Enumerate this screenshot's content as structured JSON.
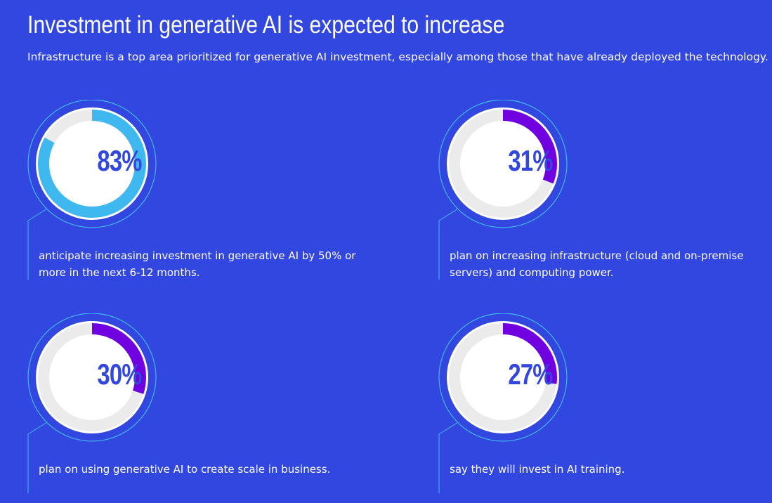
{
  "header": {
    "title": "Investment in generative AI is expected to increase",
    "subtitle": "Infrastructure is a top area prioritized for generative AI investment, especially among those that have already deployed the technology."
  },
  "colors": {
    "background": "#3246e0",
    "track": "#ebebeb",
    "light_blue": "#3fb8f0",
    "purple": "#7000e0",
    "ring": "#3fb8f0"
  },
  "stats": [
    {
      "value": 83,
      "label": "83%",
      "color": "#3fb8f0",
      "description": "anticipate increasing investment in generative AI by 50% or more in the next 6-12 months."
    },
    {
      "value": 31,
      "label": "31%",
      "color": "#7000e0",
      "description": "plan on increasing infrastructure (cloud and on-premise servers) and computing power."
    },
    {
      "value": 30,
      "label": "30%",
      "color": "#7000e0",
      "description": "plan on using generative AI to create scale in business."
    },
    {
      "value": 27,
      "label": "27%",
      "color": "#7000e0",
      "description": "say they will invest in AI training."
    }
  ]
}
